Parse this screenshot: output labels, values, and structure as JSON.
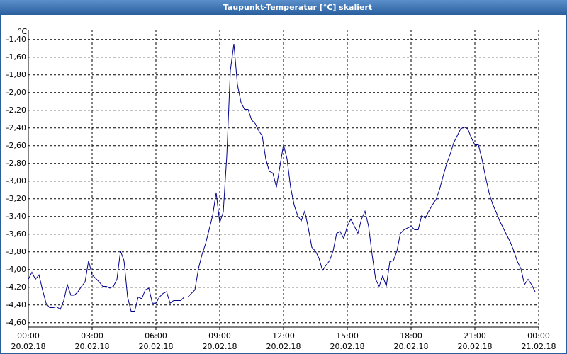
{
  "chart_data": {
    "type": "line",
    "title": "Taupunkt-Temperatur [°C] skaliert",
    "y_unit": "°C",
    "color": "#00008b",
    "grid": true,
    "xlim": [
      0,
      1440
    ],
    "xticks": [
      {
        "value": 0,
        "label": "00:00"
      },
      {
        "value": 180,
        "label": "03:00"
      },
      {
        "value": 360,
        "label": "06:00"
      },
      {
        "value": 540,
        "label": "09:00"
      },
      {
        "value": 720,
        "label": "12:00"
      },
      {
        "value": 900,
        "label": "15:00"
      },
      {
        "value": 1080,
        "label": "18:00"
      },
      {
        "value": 1260,
        "label": "21:00"
      },
      {
        "value": 1440,
        "label": "00:00"
      }
    ],
    "xtick_dates": [
      "20.02.18",
      "20.02.18",
      "20.02.18",
      "20.02.18",
      "20.02.18",
      "20.02.18",
      "20.02.18",
      "20.02.18",
      "21.02.18"
    ],
    "ylim": [
      -4.65,
      -1.29
    ],
    "yticks": [
      {
        "value": -1.4,
        "label": "-1,40"
      },
      {
        "value": -1.6,
        "label": "-1,60"
      },
      {
        "value": -1.8,
        "label": "-1,80"
      },
      {
        "value": -2.0,
        "label": "-2,00"
      },
      {
        "value": -2.2,
        "label": "-2,20"
      },
      {
        "value": -2.4,
        "label": "-2,40"
      },
      {
        "value": -2.6,
        "label": "-2,60"
      },
      {
        "value": -2.8,
        "label": "-2,80"
      },
      {
        "value": -3.0,
        "label": "-3,00"
      },
      {
        "value": -3.2,
        "label": "-3,20"
      },
      {
        "value": -3.4,
        "label": "-3,40"
      },
      {
        "value": -3.6,
        "label": "-3,60"
      },
      {
        "value": -3.8,
        "label": "-3,80"
      },
      {
        "value": -4.0,
        "label": "-4,00"
      },
      {
        "value": -4.2,
        "label": "-4,20"
      },
      {
        "value": -4.4,
        "label": "-4,40"
      },
      {
        "value": -4.6,
        "label": "-4,60"
      }
    ],
    "x": [
      0,
      10,
      20,
      30,
      40,
      50,
      60,
      70,
      80,
      90,
      100,
      110,
      120,
      130,
      140,
      150,
      160,
      170,
      180,
      190,
      200,
      210,
      220,
      230,
      240,
      250,
      260,
      270,
      280,
      290,
      300,
      310,
      320,
      330,
      340,
      350,
      360,
      370,
      380,
      390,
      400,
      410,
      420,
      430,
      440,
      450,
      460,
      470,
      480,
      490,
      500,
      510,
      520,
      530,
      540,
      550,
      560,
      570,
      580,
      590,
      600,
      610,
      620,
      630,
      640,
      650,
      660,
      670,
      680,
      690,
      700,
      710,
      720,
      730,
      740,
      750,
      760,
      770,
      780,
      790,
      800,
      810,
      820,
      830,
      840,
      850,
      860,
      870,
      880,
      890,
      900,
      910,
      920,
      930,
      940,
      950,
      960,
      970,
      980,
      990,
      1000,
      1010,
      1020,
      1030,
      1040,
      1050,
      1060,
      1070,
      1080,
      1090,
      1100,
      1110,
      1120,
      1130,
      1140,
      1150,
      1160,
      1170,
      1180,
      1190,
      1200,
      1210,
      1220,
      1230,
      1240,
      1250,
      1260,
      1270,
      1280,
      1290,
      1300,
      1310,
      1320,
      1330,
      1340,
      1350,
      1360,
      1370,
      1380,
      1390,
      1400,
      1410,
      1420,
      1430
    ],
    "values": [
      -4.11,
      -4.03,
      -4.11,
      -4.06,
      -4.23,
      -4.38,
      -4.43,
      -4.43,
      -4.42,
      -4.45,
      -4.35,
      -4.17,
      -4.29,
      -4.29,
      -4.25,
      -4.19,
      -4.14,
      -3.9,
      -4.06,
      -4.1,
      -4.14,
      -4.19,
      -4.19,
      -4.21,
      -4.19,
      -4.11,
      -3.79,
      -3.9,
      -4.31,
      -4.47,
      -4.47,
      -4.31,
      -4.33,
      -4.23,
      -4.21,
      -4.38,
      -4.38,
      -4.31,
      -4.27,
      -4.25,
      -4.38,
      -4.35,
      -4.35,
      -4.35,
      -4.31,
      -4.31,
      -4.27,
      -4.23,
      -3.99,
      -3.83,
      -3.71,
      -3.55,
      -3.39,
      -3.13,
      -3.47,
      -3.35,
      -2.71,
      -1.75,
      -1.45,
      -1.91,
      -2.11,
      -2.19,
      -2.19,
      -2.31,
      -2.35,
      -2.43,
      -2.49,
      -2.75,
      -2.89,
      -2.91,
      -3.07,
      -2.83,
      -2.59,
      -2.75,
      -3.07,
      -3.27,
      -3.39,
      -3.45,
      -3.34,
      -3.53,
      -3.75,
      -3.79,
      -3.87,
      -4.01,
      -3.95,
      -3.9,
      -3.79,
      -3.59,
      -3.57,
      -3.65,
      -3.51,
      -3.43,
      -3.51,
      -3.59,
      -3.43,
      -3.34,
      -3.51,
      -3.83,
      -4.11,
      -4.19,
      -4.07,
      -4.19,
      -3.91,
      -3.9,
      -3.79,
      -3.59,
      -3.55,
      -3.53,
      -3.51,
      -3.55,
      -3.55,
      -3.39,
      -3.42,
      -3.34,
      -3.27,
      -3.21,
      -3.1,
      -2.95,
      -2.81,
      -2.7,
      -2.57,
      -2.49,
      -2.41,
      -2.39,
      -2.41,
      -2.51,
      -2.59,
      -2.59,
      -2.75,
      -2.95,
      -3.13,
      -3.26,
      -3.35,
      -3.45,
      -3.53,
      -3.61,
      -3.69,
      -3.79,
      -3.91,
      -3.99,
      -4.17,
      -4.11,
      -4.17,
      -4.25
    ]
  }
}
